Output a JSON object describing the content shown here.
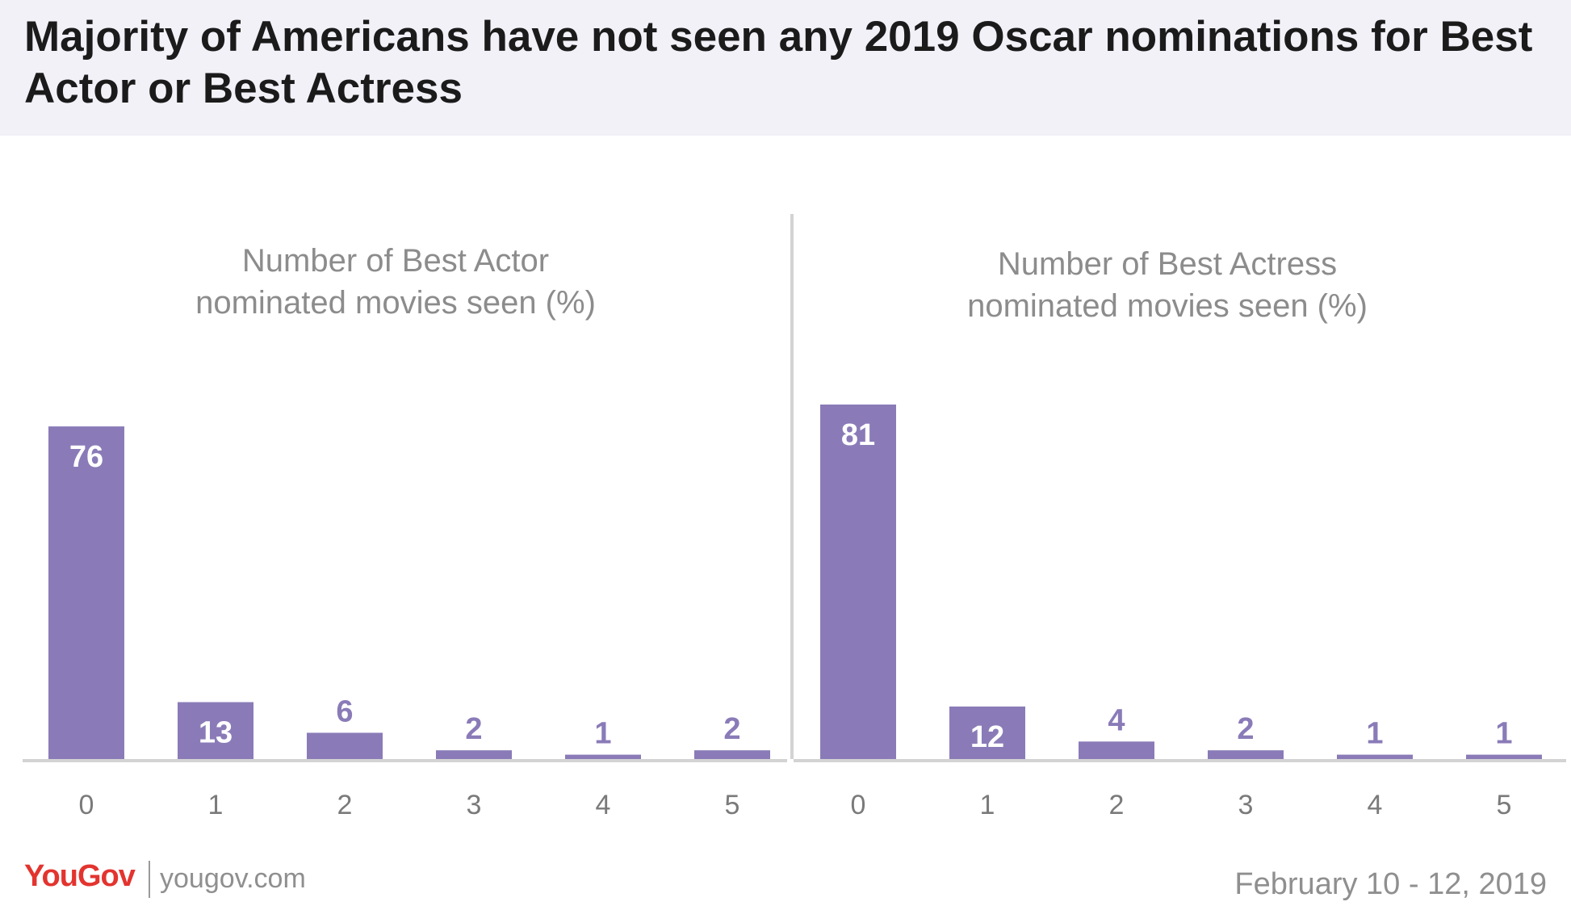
{
  "title": "Majority of Americans have not seen any 2019 Oscar nominations for Best Actor or Best Actress",
  "colors": {
    "bar": "#8a7bb8",
    "axis": "#d3d3d3",
    "subtitle": "#8c8c8c",
    "tick": "#7a7a7a"
  },
  "chart_data": [
    {
      "type": "bar",
      "title": "Number of Best Actor nominated movies seen (%)",
      "title_lines": [
        "Number of Best Actor",
        "nominated movies seen (%)"
      ],
      "categories": [
        "0",
        "1",
        "2",
        "3",
        "4",
        "5"
      ],
      "values": [
        76,
        13,
        6,
        2,
        1,
        2
      ],
      "ylim": [
        0,
        100
      ]
    },
    {
      "type": "bar",
      "title": "Number of Best Actress nominated movies seen (%)",
      "title_lines": [
        "Number of Best Actress",
        "nominated movies seen (%)"
      ],
      "categories": [
        "0",
        "1",
        "2",
        "3",
        "4",
        "5"
      ],
      "values": [
        81,
        12,
        4,
        2,
        1,
        1
      ],
      "ylim": [
        0,
        100
      ]
    }
  ],
  "footer": {
    "brand": "YouGov",
    "site": "yougov.com",
    "date": "February 10 - 12, 2019"
  }
}
